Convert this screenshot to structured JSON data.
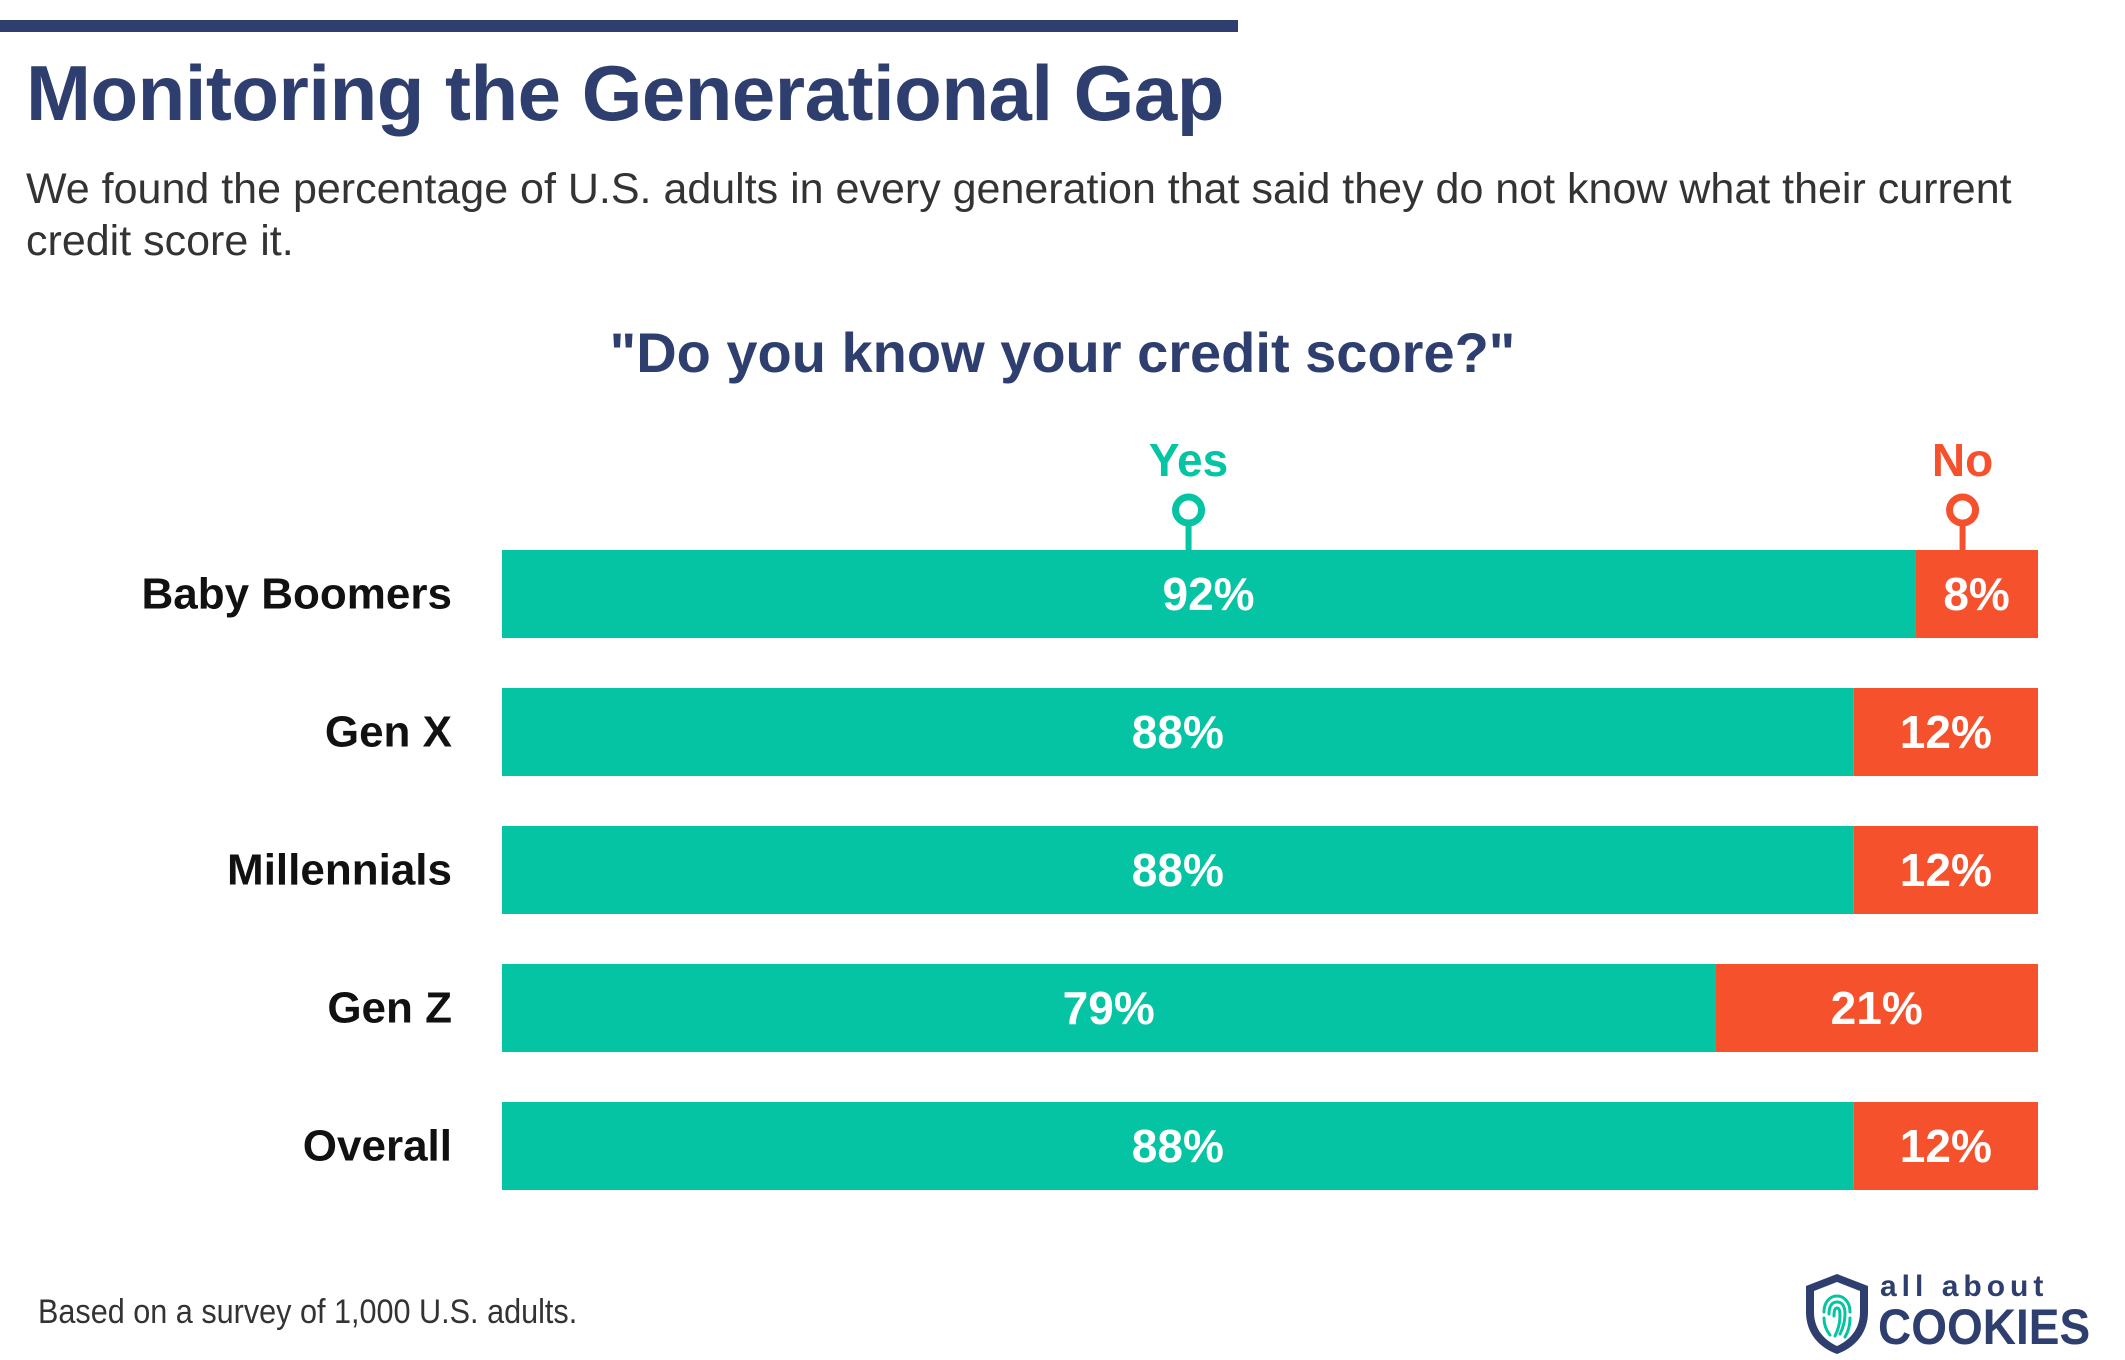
{
  "header": {
    "title": "Monitoring the Generational Gap",
    "subtitle": "We found the percentage of U.S. adults in every generation that said they do not know what their current credit score it."
  },
  "chart_data": {
    "type": "bar",
    "orientation": "horizontal",
    "stacked": true,
    "title": "\"Do you know your credit score?\"",
    "categories": [
      "Baby Boomers",
      "Gen X",
      "Millennials",
      "Gen Z",
      "Overall"
    ],
    "series": [
      {
        "name": "Yes",
        "color": "#04c4a3",
        "values": [
          92,
          88,
          88,
          79,
          88
        ],
        "labels": [
          "92%",
          "88%",
          "88%",
          "79%",
          "88%"
        ]
      },
      {
        "name": "No",
        "color": "#f5512d",
        "values": [
          8,
          12,
          12,
          21,
          12
        ],
        "labels": [
          "8%",
          "12%",
          "12%",
          "21%",
          "12%"
        ]
      }
    ],
    "xlim": [
      0,
      100
    ],
    "legend_position": "top",
    "grid": false
  },
  "footer": {
    "note": "Based on a survey of 1,000 U.S. adults.",
    "logo_top": "all about",
    "logo_bottom": "COOKIES"
  },
  "colors": {
    "navy": "#2e3e6e",
    "yes": "#04c4a3",
    "no": "#f5512d"
  }
}
